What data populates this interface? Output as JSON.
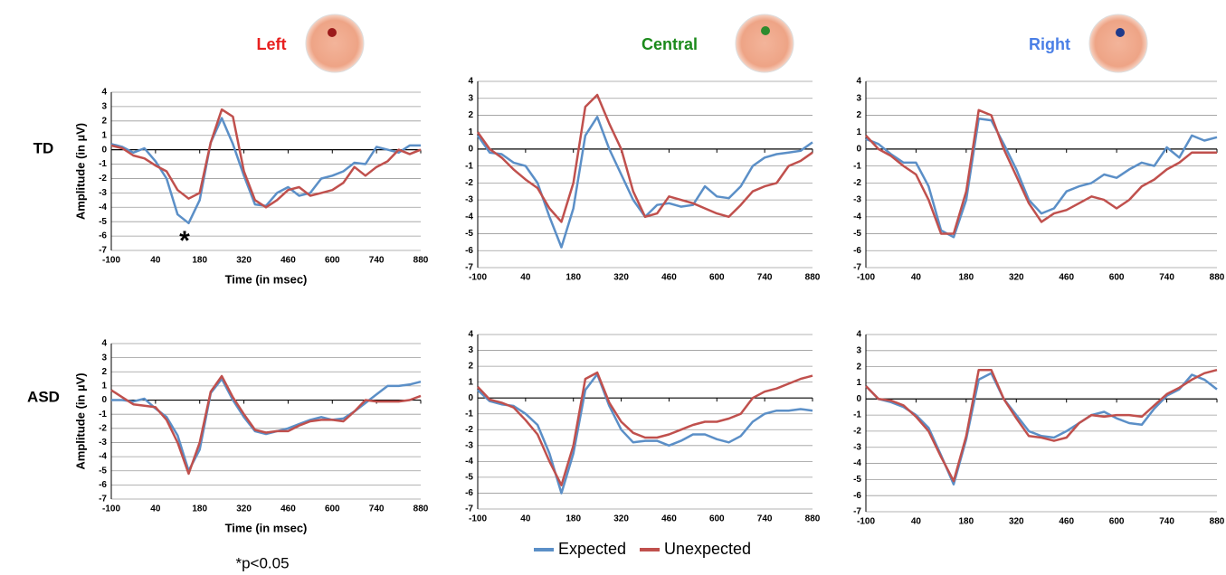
{
  "row_labels": [
    "TD",
    "ASD"
  ],
  "note": "*p<0.05",
  "chart_data": [
    {
      "type": "line",
      "title": "Left",
      "title_color": "#e8201f",
      "annotation": "*",
      "y_label": "Amplitude (in µV)",
      "x_label": "Time (in msec)",
      "x": [
        -100,
        -65,
        -30,
        5,
        40,
        75,
        110,
        145,
        180,
        215,
        250,
        285,
        320,
        355,
        390,
        425,
        460,
        495,
        530,
        565,
        600,
        635,
        670,
        705,
        740,
        775,
        810,
        845,
        880
      ],
      "xlim": [
        -100,
        880
      ],
      "xticks": [
        -100,
        40,
        180,
        320,
        460,
        600,
        740,
        880
      ],
      "ylim": [
        -7,
        4
      ],
      "yticks": [
        -7,
        -6,
        -5,
        -4,
        -3,
        -2,
        -1,
        0,
        1,
        2,
        3,
        4
      ],
      "grid": true,
      "series": [
        {
          "name": "Expected",
          "color": "#5b8fc7",
          "values": [
            0.4,
            0.2,
            -0.2,
            0.1,
            -0.8,
            -2,
            -4.5,
            -5.1,
            -3.5,
            0.5,
            2.2,
            0.4,
            -1.8,
            -3.8,
            -3.9,
            -3.0,
            -2.6,
            -3.2,
            -3.0,
            -2.0,
            -1.8,
            -1.5,
            -0.9,
            -1.0,
            0.2,
            0.0,
            -0.2,
            0.3,
            0.3
          ]
        },
        {
          "name": "Unexpected",
          "color": "#c0504d",
          "values": [
            0.3,
            0.1,
            -0.4,
            -0.6,
            -1.1,
            -1.5,
            -2.8,
            -3.4,
            -3.0,
            0.5,
            2.8,
            2.3,
            -1.5,
            -3.5,
            -4.0,
            -3.5,
            -2.8,
            -2.6,
            -3.2,
            -3.0,
            -2.8,
            -2.3,
            -1.2,
            -1.8,
            -1.2,
            -0.8,
            0.0,
            -0.3,
            0.0
          ]
        }
      ]
    },
    {
      "type": "line",
      "title": "Central",
      "title_color": "#1b8a1b",
      "x": [
        -100,
        -65,
        -30,
        5,
        40,
        75,
        110,
        145,
        180,
        215,
        250,
        285,
        320,
        355,
        390,
        425,
        460,
        495,
        530,
        565,
        600,
        635,
        670,
        705,
        740,
        775,
        810,
        845,
        880
      ],
      "xlim": [
        -100,
        880
      ],
      "xticks": [
        -100,
        40,
        180,
        320,
        460,
        600,
        740,
        880
      ],
      "ylim": [
        -7,
        4
      ],
      "yticks": [
        -7,
        -6,
        -5,
        -4,
        -3,
        -2,
        -1,
        0,
        1,
        2,
        3,
        4
      ],
      "grid": true,
      "series": [
        {
          "name": "Expected",
          "color": "#5b8fc7",
          "values": [
            0.8,
            -0.2,
            -0.3,
            -0.8,
            -1.0,
            -2.0,
            -4.0,
            -5.8,
            -3.5,
            0.8,
            1.9,
            0.0,
            -1.5,
            -3.0,
            -4.0,
            -3.3,
            -3.2,
            -3.4,
            -3.3,
            -2.2,
            -2.8,
            -2.9,
            -2.2,
            -1.0,
            -0.5,
            -0.3,
            -0.2,
            -0.1,
            0.4
          ]
        },
        {
          "name": "Unexpected",
          "color": "#c0504d",
          "values": [
            1.0,
            0.0,
            -0.5,
            -1.2,
            -1.8,
            -2.3,
            -3.5,
            -4.3,
            -2.0,
            2.5,
            3.2,
            1.5,
            0.0,
            -2.5,
            -4.0,
            -3.8,
            -2.8,
            -3.0,
            -3.2,
            -3.5,
            -3.8,
            -4.0,
            -3.3,
            -2.5,
            -2.2,
            -2.0,
            -1.0,
            -0.7,
            -0.2
          ]
        }
      ]
    },
    {
      "type": "line",
      "title": "Right",
      "title_color": "#4a7fe6",
      "x": [
        -100,
        -65,
        -30,
        5,
        40,
        75,
        110,
        145,
        180,
        215,
        250,
        285,
        320,
        355,
        390,
        425,
        460,
        495,
        530,
        565,
        600,
        635,
        670,
        705,
        740,
        775,
        810,
        845,
        880
      ],
      "xlim": [
        -100,
        880
      ],
      "xticks": [
        -100,
        40,
        180,
        320,
        460,
        600,
        740,
        880
      ],
      "ylim": [
        -7,
        4
      ],
      "yticks": [
        -7,
        -6,
        -5,
        -4,
        -3,
        -2,
        -1,
        0,
        1,
        2,
        3,
        4
      ],
      "grid": true,
      "series": [
        {
          "name": "Expected",
          "color": "#5b8fc7",
          "values": [
            0.6,
            0.3,
            -0.3,
            -0.8,
            -0.8,
            -2.2,
            -4.8,
            -5.2,
            -3.0,
            1.8,
            1.7,
            0.3,
            -1.2,
            -3.0,
            -3.8,
            -3.5,
            -2.5,
            -2.2,
            -2.0,
            -1.5,
            -1.7,
            -1.2,
            -0.8,
            -1.0,
            0.1,
            -0.5,
            0.8,
            0.5,
            0.7
          ]
        },
        {
          "name": "Unexpected",
          "color": "#c0504d",
          "values": [
            0.8,
            0.0,
            -0.4,
            -1.0,
            -1.5,
            -3.0,
            -5.0,
            -5.0,
            -2.5,
            2.3,
            2.0,
            0.0,
            -1.6,
            -3.2,
            -4.3,
            -3.8,
            -3.6,
            -3.2,
            -2.8,
            -3.0,
            -3.5,
            -3.0,
            -2.2,
            -1.8,
            -1.2,
            -0.8,
            -0.2,
            -0.2,
            -0.2
          ]
        }
      ]
    },
    {
      "type": "line",
      "y_label": "Amplitude (in µV)",
      "x_label": "Time (in msec)",
      "x": [
        -100,
        -65,
        -30,
        5,
        40,
        75,
        110,
        145,
        180,
        215,
        250,
        285,
        320,
        355,
        390,
        425,
        460,
        495,
        530,
        565,
        600,
        635,
        670,
        705,
        740,
        775,
        810,
        845,
        880
      ],
      "xlim": [
        -100,
        880
      ],
      "xticks": [
        -100,
        40,
        180,
        320,
        460,
        600,
        740,
        880
      ],
      "ylim": [
        -7,
        4
      ],
      "yticks": [
        -7,
        -6,
        -5,
        -4,
        -3,
        -2,
        -1,
        0,
        1,
        2,
        3,
        4
      ],
      "grid": true,
      "series": [
        {
          "name": "Expected",
          "color": "#5b8fc7",
          "values": [
            0.0,
            0.0,
            -0.1,
            0.1,
            -0.6,
            -1.2,
            -2.5,
            -5.0,
            -3.5,
            0.5,
            1.5,
            0.0,
            -1.2,
            -2.2,
            -2.4,
            -2.2,
            -2.0,
            -1.7,
            -1.4,
            -1.2,
            -1.4,
            -1.3,
            -0.8,
            -0.2,
            0.4,
            1.0,
            1.0,
            1.1,
            1.3
          ]
        },
        {
          "name": "Unexpected",
          "color": "#c0504d",
          "values": [
            0.7,
            0.2,
            -0.3,
            -0.4,
            -0.5,
            -1.4,
            -3.0,
            -5.2,
            -3.0,
            0.6,
            1.7,
            0.2,
            -1.0,
            -2.1,
            -2.3,
            -2.2,
            -2.2,
            -1.8,
            -1.5,
            -1.4,
            -1.4,
            -1.5,
            -0.8,
            0.0,
            -0.1,
            -0.1,
            -0.1,
            0.0,
            0.3
          ]
        }
      ]
    },
    {
      "type": "line",
      "x": [
        -100,
        -65,
        -30,
        5,
        40,
        75,
        110,
        145,
        180,
        215,
        250,
        285,
        320,
        355,
        390,
        425,
        460,
        495,
        530,
        565,
        600,
        635,
        670,
        705,
        740,
        775,
        810,
        845,
        880
      ],
      "xlim": [
        -100,
        880
      ],
      "xticks": [
        -100,
        40,
        180,
        320,
        460,
        600,
        740,
        880
      ],
      "ylim": [
        -7,
        4
      ],
      "yticks": [
        -7,
        -6,
        -5,
        -4,
        -3,
        -2,
        -1,
        0,
        1,
        2,
        3,
        4
      ],
      "grid": true,
      "series": [
        {
          "name": "Expected",
          "color": "#5b8fc7",
          "values": [
            0.5,
            -0.2,
            -0.4,
            -0.5,
            -1.0,
            -1.7,
            -3.5,
            -6.0,
            -3.5,
            0.5,
            1.5,
            -0.5,
            -2.0,
            -2.8,
            -2.7,
            -2.7,
            -3.0,
            -2.7,
            -2.3,
            -2.3,
            -2.6,
            -2.8,
            -2.4,
            -1.5,
            -1.0,
            -0.8,
            -0.8,
            -0.7,
            -0.8
          ]
        },
        {
          "name": "Unexpected",
          "color": "#c0504d",
          "values": [
            0.7,
            -0.1,
            -0.3,
            -0.6,
            -1.4,
            -2.3,
            -4.0,
            -5.5,
            -3.0,
            1.2,
            1.6,
            -0.3,
            -1.5,
            -2.2,
            -2.5,
            -2.5,
            -2.3,
            -2.0,
            -1.7,
            -1.5,
            -1.5,
            -1.3,
            -1.0,
            0.0,
            0.4,
            0.6,
            0.9,
            1.2,
            1.4
          ]
        }
      ]
    },
    {
      "type": "line",
      "x": [
        -100,
        -65,
        -30,
        5,
        40,
        75,
        110,
        145,
        180,
        215,
        250,
        285,
        320,
        355,
        390,
        425,
        460,
        495,
        530,
        565,
        600,
        635,
        670,
        705,
        740,
        775,
        810,
        845,
        880
      ],
      "xlim": [
        -100,
        880
      ],
      "xticks": [
        -100,
        40,
        180,
        320,
        460,
        600,
        740,
        880
      ],
      "ylim": [
        -7,
        4
      ],
      "yticks": [
        -7,
        -6,
        -5,
        -4,
        -3,
        -2,
        -1,
        0,
        1,
        2,
        3,
        4
      ],
      "grid": true,
      "series": [
        {
          "name": "Expected",
          "color": "#5b8fc7",
          "values": [
            0.8,
            0.0,
            -0.2,
            -0.5,
            -1.0,
            -1.8,
            -3.5,
            -5.3,
            -2.5,
            1.2,
            1.6,
            0.0,
            -1.0,
            -2.0,
            -2.3,
            -2.4,
            -2.0,
            -1.5,
            -1.0,
            -0.8,
            -1.2,
            -1.5,
            -1.6,
            -0.6,
            0.2,
            0.6,
            1.5,
            1.2,
            0.6
          ]
        },
        {
          "name": "Unexpected",
          "color": "#c0504d",
          "values": [
            0.8,
            0.0,
            -0.1,
            -0.4,
            -1.1,
            -2.0,
            -3.6,
            -5.1,
            -2.3,
            1.8,
            1.8,
            0.0,
            -1.2,
            -2.3,
            -2.4,
            -2.6,
            -2.4,
            -1.5,
            -1.0,
            -1.1,
            -1.0,
            -1.0,
            -1.1,
            -0.4,
            0.3,
            0.7,
            1.2,
            1.6,
            1.8
          ]
        }
      ]
    }
  ]
}
